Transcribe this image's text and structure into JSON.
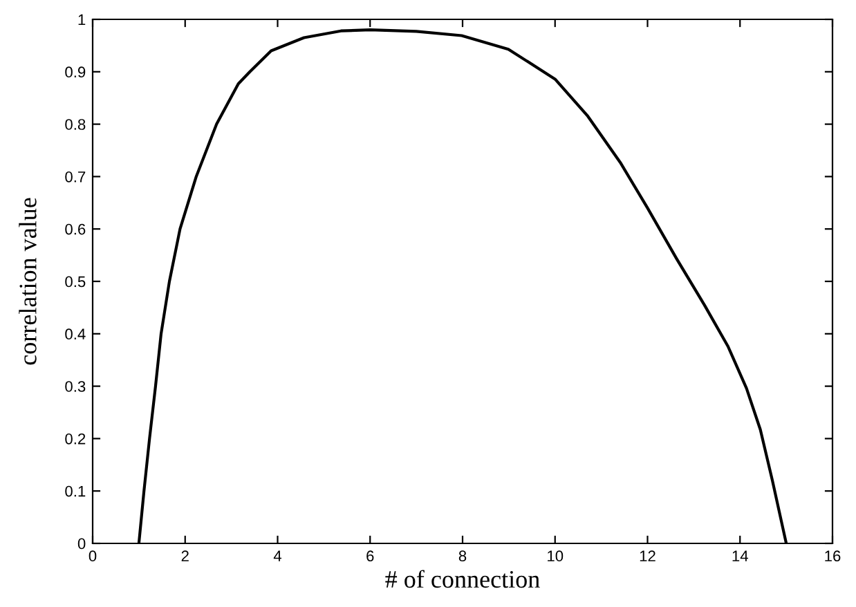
{
  "chart_data": {
    "type": "line",
    "xlabel": "# of connection",
    "ylabel": "correlation value",
    "xlim": [
      0,
      16
    ],
    "xticks": [
      0,
      2,
      4,
      6,
      8,
      10,
      12,
      14,
      16
    ],
    "ylim": [
      0,
      1
    ],
    "yticks": [
      0,
      0.1,
      0.2,
      0.3,
      0.4,
      0.5,
      0.6,
      0.7,
      0.8,
      0.9,
      1
    ],
    "grid": false,
    "marker": "none",
    "line_style": "solid",
    "series": [
      {
        "color": "#000000",
        "x": [
          1.0,
          1.11,
          1.23,
          1.36,
          1.48,
          1.66,
          1.89,
          2.24,
          2.68,
          3.15,
          3.4,
          3.86,
          4.57,
          5.37,
          6.0,
          7.0,
          7.98,
          8.99,
          10.0,
          10.71,
          11.41,
          12.0,
          12.63,
          13.23,
          13.74,
          14.14,
          14.44,
          14.7,
          15.0
        ],
        "values": [
          0,
          0.1,
          0.2,
          0.3,
          0.4,
          0.5,
          0.6,
          0.7,
          0.8,
          0.877,
          0.9,
          0.94,
          0.965,
          0.978,
          0.98,
          0.977,
          0.969,
          0.943,
          0.886,
          0.815,
          0.727,
          0.64,
          0.543,
          0.455,
          0.376,
          0.296,
          0.217,
          0.12,
          0
        ]
      }
    ]
  }
}
